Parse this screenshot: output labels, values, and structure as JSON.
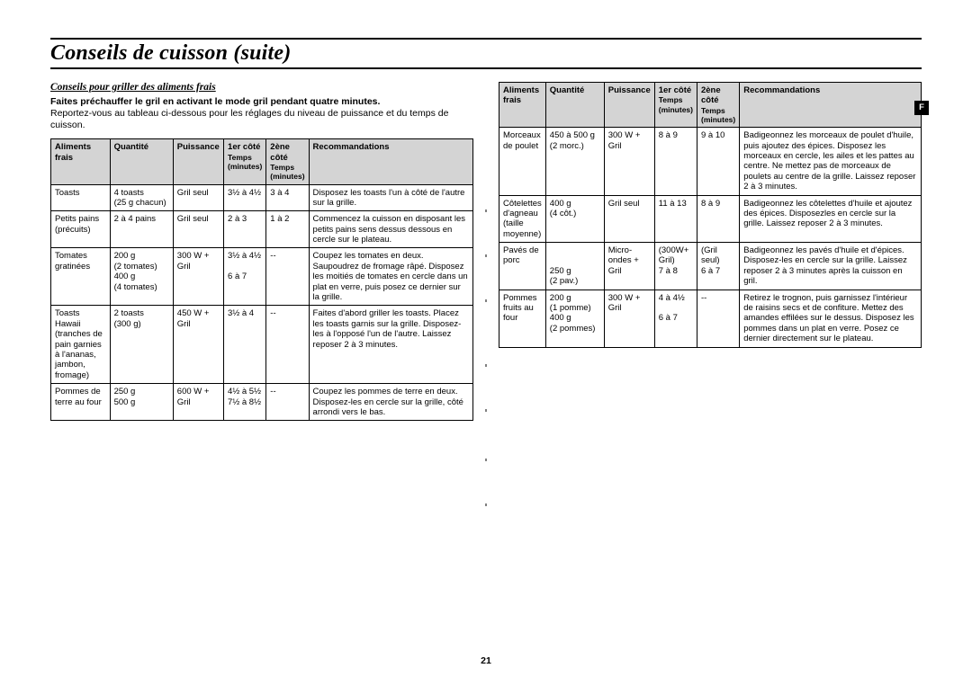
{
  "page_number": "21",
  "side_tab": "F",
  "title": "Conseils de cuisson (suite)",
  "subtitle": "Conseils pour griller des aliments frais",
  "lead_bold": "Faites préchauffer le gril en activant le mode gril pendant quatre minutes.",
  "lead": "Reportez-vous au tableau ci-dessous pour les réglages du niveau de puissance et du temps de cuisson.",
  "headers": {
    "food": "Aliments frais",
    "qty": "Quantité",
    "power": "Puissance",
    "t1": "1er côté",
    "t1_sub": "Temps (minutes)",
    "t2": "2ène côté",
    "t2_sub": "Temps (minutes)",
    "rec": "Recommandations"
  },
  "table_left": [
    {
      "food": "Toasts",
      "qty": "4 toasts\n(25 g chacun)",
      "power": "Gril seul",
      "t1": "3½ à 4½",
      "t2": "3 à 4",
      "rec": "Disposez les toasts l'un à côté de l'autre sur la grille."
    },
    {
      "food": "Petits pains (précuits)",
      "qty": "2 à 4 pains",
      "power": "Gril seul",
      "t1": "2 à 3",
      "t2": "1 à 2",
      "rec": "Commencez la cuisson en disposant les petits pains sens dessus dessous en cercle sur le plateau."
    },
    {
      "food": "Tomates gratinées",
      "qty": "200 g\n(2 tomates)\n400 g\n(4 tomates)",
      "power": "300 W + Gril",
      "t1": "3½ à 4½\n\n6 à 7",
      "t2": "--",
      "rec": "Coupez les tomates en deux. Saupoudrez de fromage râpé. Disposez les moitiés de tomates en cercle dans un plat en verre, puis posez ce dernier sur la grille."
    },
    {
      "food": "Toasts Hawaii (tranches de pain garnies à l'ananas, jambon, fromage)",
      "qty": "2 toasts\n(300 g)",
      "power": "450 W + Gril",
      "t1": "3½ à 4",
      "t2": "--",
      "rec": "Faites d'abord griller les toasts. Placez les toasts garnis sur la grille. Disposez-les à l'opposé l'un de l'autre. Laissez reposer 2 à 3 minutes."
    },
    {
      "food": "Pommes de terre au four",
      "qty": "250 g\n500 g",
      "power": "600 W + Gril",
      "t1": "4½ à 5½\n7½ à 8½",
      "t2": "--",
      "rec": "Coupez les pommes de terre en deux. Disposez-les en cercle sur la grille, côté arrondi vers le bas."
    }
  ],
  "table_right": [
    {
      "food": "Morceaux de poulet",
      "qty": "450 à 500 g\n(2 morc.)",
      "power": "300 W + Gril",
      "t1": "8 à 9",
      "t2": "9 à 10",
      "rec": "Badigeonnez les morceaux de poulet d'huile, puis ajoutez des épices. Disposez les morceaux en cercle, les ailes et les pattes au centre. Ne mettez pas de morceaux de poulets au centre de la grille. Laissez reposer 2 à 3 minutes."
    },
    {
      "food": "Côtelettes d'agneau (taille moyenne)",
      "qty": "400 g\n(4 côt.)",
      "power": "Gril seul",
      "t1": "11 à 13",
      "t2": "8 à 9",
      "rec": "Badigeonnez les côtelettes d'huile et ajoutez des épices. Disposezles en cercle sur la grille. Laissez reposer 2 à 3 minutes."
    },
    {
      "food": "Pavés de porc",
      "qty": "\n\n250 g\n(2 pav.)",
      "power": "Micro-ondes + Gril",
      "t1": "(300W+ Gril)\n7 à 8",
      "t2": "(Gril seul)\n6 à 7",
      "rec": "Badigeonnez les pavés d'huile et d'épices. Disposez-les en cercle sur la grille. Laissez reposer 2 à 3 minutes après la cuisson en gril."
    },
    {
      "food": "Pommes fruits au four",
      "qty": "200 g\n(1 pomme)\n400 g\n(2 pommes)",
      "power": "300 W + Gril",
      "t1": "4 à 4½\n\n6 à 7",
      "t2": "--",
      "rec": "Retirez le trognon, puis garnissez l'intérieur de raisins secs et de confiture. Mettez des amandes effilées sur le dessus. Disposez les pommes dans un plat en verre. Posez ce dernier directement sur le plateau."
    }
  ]
}
